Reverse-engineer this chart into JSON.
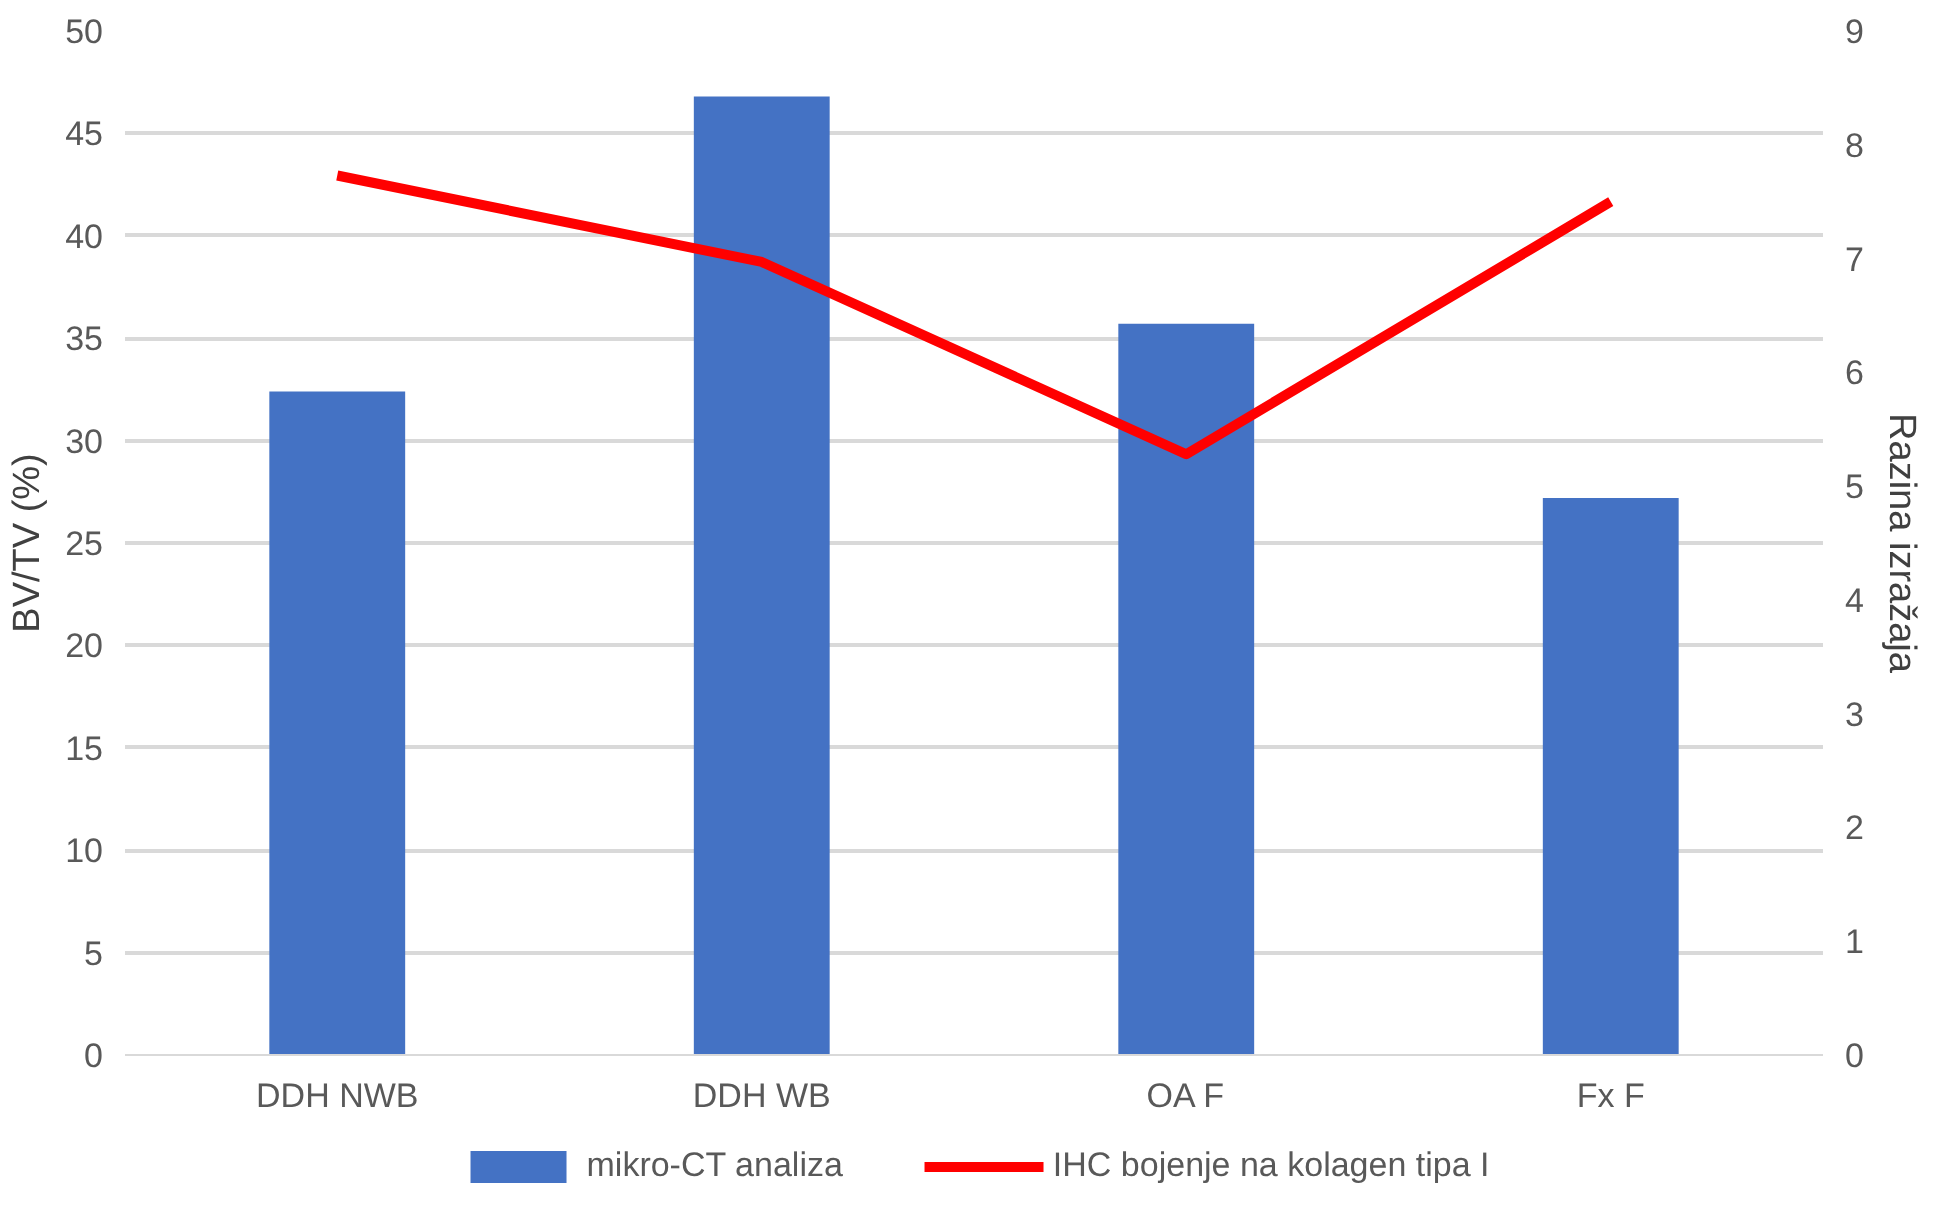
{
  "chart_data": {
    "type": "bar",
    "categories": [
      "DDH NWB",
      "DDH WB",
      "OA F",
      "Fx F"
    ],
    "ylabel": "BV/TV (%)",
    "y2label": "Razina izražaja",
    "ylim": [
      0,
      50
    ],
    "yticks": [
      0,
      5,
      10,
      15,
      20,
      25,
      30,
      35,
      40,
      45,
      50
    ],
    "y2lim": [
      0,
      9
    ],
    "y2ticks": [
      0,
      1,
      2,
      3,
      4,
      5,
      6,
      7,
      8,
      9
    ],
    "grid": "y",
    "legend": "bottom",
    "series": [
      {
        "name": "mikro-CT analiza",
        "color": "#4472c4",
        "values": [
          32.4,
          46.8,
          35.7,
          27.2
        ]
      },
      {
        "name": "IHC bojenje na kolagen tipa I",
        "type": "line",
        "axis": "y2",
        "color": "#ff0000",
        "values": [
          7.73,
          6.97,
          5.28,
          7.5
        ]
      }
    ]
  }
}
